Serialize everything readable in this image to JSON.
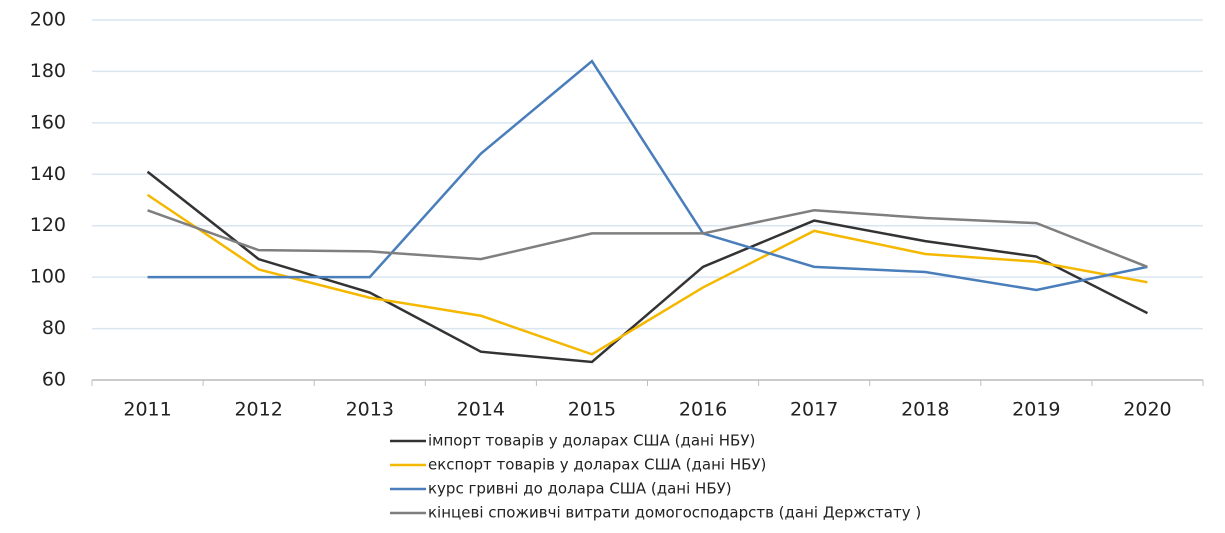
{
  "chart_data": {
    "type": "line",
    "categories": [
      "2011",
      "2012",
      "2013",
      "2014",
      "2015",
      "2016",
      "2017",
      "2018",
      "2019",
      "2020"
    ],
    "series": [
      {
        "name": "імпорт товарів у доларах США (дані НБУ)",
        "color": "#333333",
        "values": [
          141,
          107,
          94,
          71,
          67,
          104,
          122,
          114,
          108,
          86
        ]
      },
      {
        "name": "експорт товарів у доларах США (дані НБУ)",
        "color": "#f5b800",
        "values": [
          132,
          103,
          92,
          85,
          70,
          96,
          118,
          109,
          106,
          98
        ]
      },
      {
        "name": "курс гривні до долара США (дані НБУ)",
        "color": "#4a7ebb",
        "values": [
          100,
          100,
          100,
          148,
          184,
          117,
          104,
          102,
          95,
          104
        ]
      },
      {
        "name": "кінцеві споживчі витрати домогосподарств (дані Держстату )",
        "color": "#7f7f7f",
        "values": [
          126,
          110.5,
          110,
          107,
          117,
          117,
          126,
          123,
          121,
          104
        ]
      }
    ],
    "ylim": [
      60,
      200
    ],
    "yticks": [
      60,
      80,
      100,
      120,
      140,
      160,
      180,
      200
    ],
    "grid": true,
    "legend": "bottom"
  }
}
